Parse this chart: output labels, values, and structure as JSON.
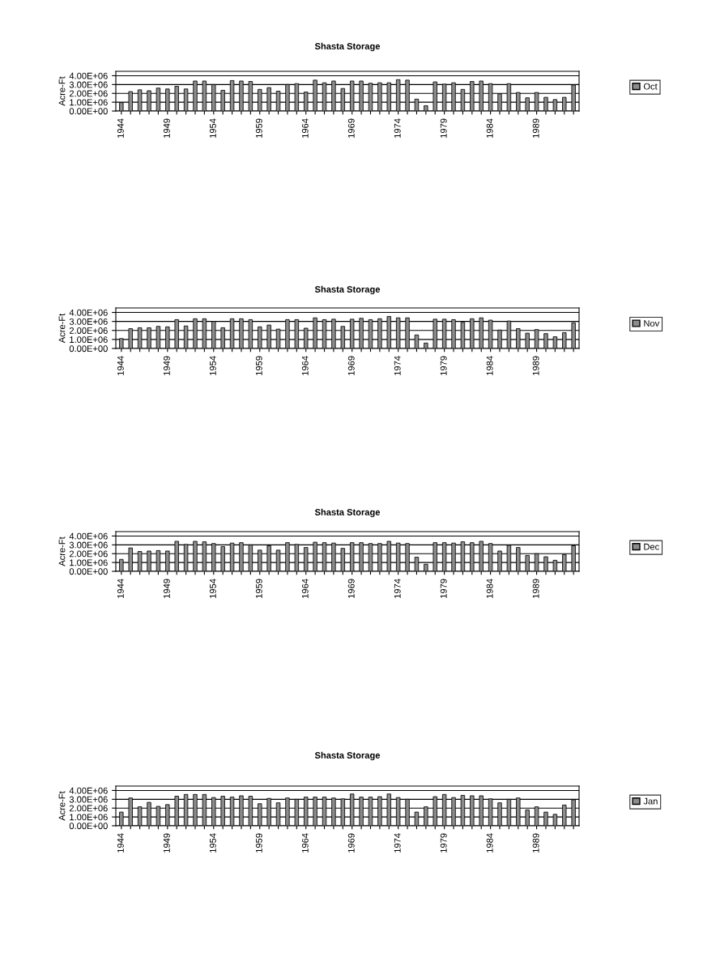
{
  "chart_data": [
    {
      "type": "bar",
      "title": "Shasta Storage",
      "ylabel": "Acre-Ft",
      "categories": [
        "1944",
        null,
        null,
        null,
        null,
        "1949",
        null,
        null,
        null,
        null,
        "1954",
        null,
        null,
        null,
        null,
        "1959",
        null,
        null,
        null,
        null,
        "1964",
        null,
        null,
        null,
        null,
        "1969",
        null,
        null,
        null,
        null,
        "1974",
        null,
        null,
        null,
        null,
        "1979",
        null,
        null,
        null,
        null,
        "1984",
        null,
        null,
        null,
        null,
        "1989",
        null,
        null,
        null,
        null
      ],
      "series": [
        {
          "name": "Oct",
          "color": "#8c8c8c",
          "values": [
            950000.0,
            2200000.0,
            2400000.0,
            2300000.0,
            2600000.0,
            2500000.0,
            2800000.0,
            2500000.0,
            3400000.0,
            3400000.0,
            3000000.0,
            2350000.0,
            3450000.0,
            3400000.0,
            3350000.0,
            2450000.0,
            2650000.0,
            2250000.0,
            3000000.0,
            3100000.0,
            2150000.0,
            3500000.0,
            3200000.0,
            3400000.0,
            2550000.0,
            3400000.0,
            3400000.0,
            3150000.0,
            3200000.0,
            3200000.0,
            3550000.0,
            3500000.0,
            1350000.0,
            600000.0,
            3300000.0,
            3050000.0,
            3200000.0,
            2450000.0,
            3350000.0,
            3400000.0,
            3100000.0,
            1950000.0,
            3100000.0,
            2100000.0,
            1500000.0,
            2100000.0,
            1550000.0,
            1300000.0,
            1550000.0,
            2950000.0
          ]
        }
      ],
      "ylim": [
        0,
        4500000.0
      ],
      "yticks": [
        {
          "value": 0,
          "label": "0.00E+00"
        },
        {
          "value": 1000000.0,
          "label": "1.00E+06"
        },
        {
          "value": 2000000.0,
          "label": "2.00E+06"
        },
        {
          "value": 3000000.0,
          "label": "3.00E+06"
        },
        {
          "value": 4000000.0,
          "label": "4.00E+06"
        }
      ],
      "grid": "y",
      "legend": "right"
    },
    {
      "type": "bar",
      "title": "Shasta Storage",
      "ylabel": "Acre-Ft",
      "categories": [
        "1944",
        null,
        null,
        null,
        null,
        "1949",
        null,
        null,
        null,
        null,
        "1954",
        null,
        null,
        null,
        null,
        "1959",
        null,
        null,
        null,
        null,
        "1964",
        null,
        null,
        null,
        null,
        "1969",
        null,
        null,
        null,
        null,
        "1974",
        null,
        null,
        null,
        null,
        "1979",
        null,
        null,
        null,
        null,
        "1984",
        null,
        null,
        null,
        null,
        "1989",
        null,
        null,
        null,
        null
      ],
      "series": [
        {
          "name": "Nov",
          "color": "#8c8c8c",
          "values": [
            1100000.0,
            2200000.0,
            2300000.0,
            2300000.0,
            2450000.0,
            2400000.0,
            3200000.0,
            2500000.0,
            3300000.0,
            3300000.0,
            3000000.0,
            2300000.0,
            3300000.0,
            3300000.0,
            3200000.0,
            2400000.0,
            2600000.0,
            2150000.0,
            3200000.0,
            3200000.0,
            2250000.0,
            3400000.0,
            3200000.0,
            3250000.0,
            2450000.0,
            3250000.0,
            3350000.0,
            3200000.0,
            3300000.0,
            3550000.0,
            3400000.0,
            3400000.0,
            1500000.0,
            600000.0,
            3250000.0,
            3250000.0,
            3200000.0,
            2900000.0,
            3300000.0,
            3400000.0,
            3150000.0,
            2050000.0,
            3050000.0,
            2200000.0,
            1700000.0,
            2100000.0,
            1650000.0,
            1300000.0,
            1750000.0,
            2850000.0
          ]
        }
      ],
      "ylim": [
        0,
        4500000.0
      ],
      "yticks": [
        {
          "value": 0,
          "label": "0.00E+00"
        },
        {
          "value": 1000000.0,
          "label": "1.00E+06"
        },
        {
          "value": 2000000.0,
          "label": "2.00E+06"
        },
        {
          "value": 3000000.0,
          "label": "3.00E+06"
        },
        {
          "value": 4000000.0,
          "label": "4.00E+06"
        }
      ],
      "grid": "y",
      "legend": "right"
    },
    {
      "type": "bar",
      "title": "Shasta Storage",
      "ylabel": "Acre-Ft",
      "categories": [
        "1944",
        null,
        null,
        null,
        null,
        "1949",
        null,
        null,
        null,
        null,
        "1954",
        null,
        null,
        null,
        null,
        "1959",
        null,
        null,
        null,
        null,
        "1964",
        null,
        null,
        null,
        null,
        "1969",
        null,
        null,
        null,
        null,
        "1974",
        null,
        null,
        null,
        null,
        "1979",
        null,
        null,
        null,
        null,
        "1984",
        null,
        null,
        null,
        null,
        "1989",
        null,
        null,
        null,
        null
      ],
      "series": [
        {
          "name": "Dec",
          "color": "#8c8c8c",
          "values": [
            1350000.0,
            2650000.0,
            2250000.0,
            2300000.0,
            2350000.0,
            2300000.0,
            3400000.0,
            3050000.0,
            3400000.0,
            3350000.0,
            3150000.0,
            2800000.0,
            3200000.0,
            3250000.0,
            3000000.0,
            2400000.0,
            2900000.0,
            2400000.0,
            3250000.0,
            3050000.0,
            2700000.0,
            3300000.0,
            3250000.0,
            3200000.0,
            2600000.0,
            3250000.0,
            3250000.0,
            3150000.0,
            3150000.0,
            3400000.0,
            3200000.0,
            3150000.0,
            1600000.0,
            800000.0,
            3250000.0,
            3250000.0,
            3200000.0,
            3350000.0,
            3250000.0,
            3400000.0,
            3150000.0,
            2300000.0,
            2950000.0,
            2700000.0,
            1800000.0,
            2000000.0,
            1650000.0,
            1250000.0,
            1900000.0,
            2900000.0
          ]
        }
      ],
      "ylim": [
        0,
        4500000.0
      ],
      "yticks": [
        {
          "value": 0,
          "label": "0.00E+00"
        },
        {
          "value": 1000000.0,
          "label": "1.00E+06"
        },
        {
          "value": 2000000.0,
          "label": "2.00E+06"
        },
        {
          "value": 3000000.0,
          "label": "3.00E+06"
        },
        {
          "value": 4000000.0,
          "label": "4.00E+06"
        }
      ],
      "grid": "y",
      "legend": "right"
    },
    {
      "type": "bar",
      "title": "Shasta Storage",
      "ylabel": "Acre-Ft",
      "categories": [
        "1944",
        null,
        null,
        null,
        null,
        "1949",
        null,
        null,
        null,
        null,
        "1954",
        null,
        null,
        null,
        null,
        "1959",
        null,
        null,
        null,
        null,
        "1964",
        null,
        null,
        null,
        null,
        "1969",
        null,
        null,
        null,
        null,
        "1974",
        null,
        null,
        null,
        null,
        "1979",
        null,
        null,
        null,
        null,
        "1984",
        null,
        null,
        null,
        null,
        "1989",
        null,
        null,
        null,
        null
      ],
      "series": [
        {
          "name": "Jan",
          "color": "#8c8c8c",
          "values": [
            1550000.0,
            3150000.0,
            2150000.0,
            2650000.0,
            2200000.0,
            2400000.0,
            3350000.0,
            3550000.0,
            3550000.0,
            3550000.0,
            3200000.0,
            3350000.0,
            3250000.0,
            3400000.0,
            3350000.0,
            2500000.0,
            3100000.0,
            2600000.0,
            3150000.0,
            3000000.0,
            3250000.0,
            3250000.0,
            3250000.0,
            3150000.0,
            3050000.0,
            3600000.0,
            3250000.0,
            3250000.0,
            3300000.0,
            3600000.0,
            3200000.0,
            3000000.0,
            1550000.0,
            2150000.0,
            3300000.0,
            3550000.0,
            3200000.0,
            3450000.0,
            3400000.0,
            3400000.0,
            3050000.0,
            2600000.0,
            3000000.0,
            3150000.0,
            1800000.0,
            2150000.0,
            1550000.0,
            1300000.0,
            2350000.0,
            2950000.0
          ]
        }
      ],
      "ylim": [
        0,
        4500000.0
      ],
      "yticks": [
        {
          "value": 0,
          "label": "0.00E+00"
        },
        {
          "value": 1000000.0,
          "label": "1.00E+06"
        },
        {
          "value": 2000000.0,
          "label": "2.00E+06"
        },
        {
          "value": 3000000.0,
          "label": "3.00E+06"
        },
        {
          "value": 4000000.0,
          "label": "4.00E+06"
        }
      ],
      "grid": "y",
      "legend": "right"
    }
  ]
}
